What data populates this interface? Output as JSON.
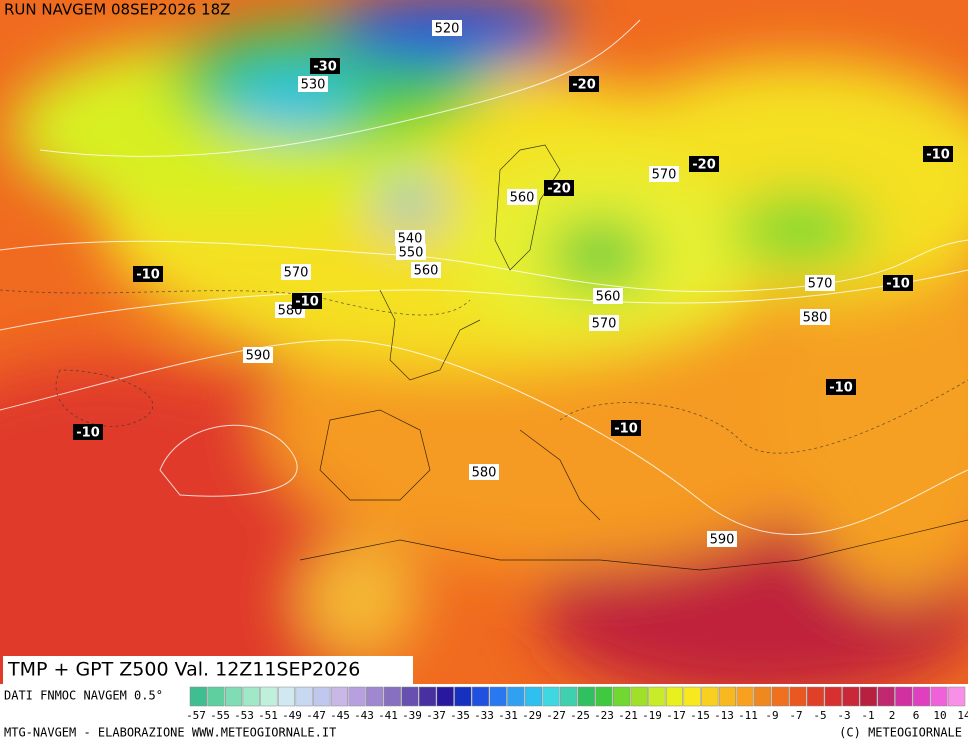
{
  "header": {
    "title": "RUN NAVGEM 08SEP2026 18Z"
  },
  "geopotential_labels": [
    "520",
    "530",
    "560",
    "540",
    "550",
    "560",
    "570",
    "580",
    "590",
    "570",
    "570",
    "580",
    "560",
    "570",
    "580",
    "590"
  ],
  "temperature_labels": [
    "-30",
    "-20",
    "-20",
    "-20",
    "-10",
    "-10",
    "-10",
    "-10",
    "-10",
    "-10",
    "-10"
  ],
  "footer": {
    "validity": "TMP + GPT Z500 Val. 12Z11SEP2026",
    "source": "DATI FNMOC NAVGEM 0.5°",
    "credit": "MTG-NAVGEM - ELABORAZIONE WWW.METEOGIORNALE.IT",
    "copyright": "(C) METEOGIORNALE"
  },
  "colorbar": {
    "labels": [
      "-57",
      "-55",
      "-53",
      "-51",
      "-49",
      "-47",
      "-45",
      "-43",
      "-41",
      "-39",
      "-37",
      "-35",
      "-33",
      "-31",
      "-29",
      "-27",
      "-25",
      "-23",
      "-21",
      "-19",
      "-17",
      "-15",
      "-13",
      "-11",
      "-9",
      "-7",
      "-5",
      "-3",
      "-1",
      "2",
      "6",
      "10",
      "14"
    ],
    "colors": [
      "#3fbf8f",
      "#5fcfa0",
      "#80dcb4",
      "#a0e8c8",
      "#c0f0dc",
      "#d0e8f0",
      "#c8d8f0",
      "#c0c8f0",
      "#c8b8e8",
      "#b8a0e0",
      "#a088d0",
      "#8870c0",
      "#6850b0",
      "#4830a0",
      "#2818a0",
      "#1830c0",
      "#2050e0",
      "#2878f0",
      "#30a0f0",
      "#30c0f0",
      "#40d8e0",
      "#40d0b0",
      "#30c060",
      "#40c840",
      "#70d830",
      "#a0e028",
      "#c8ec28",
      "#e8f020",
      "#f8e820",
      "#f8d020",
      "#f8b820",
      "#f8a020",
      "#f08820",
      "#f07020",
      "#e85820",
      "#e04028",
      "#d83030",
      "#c82838",
      "#b82040",
      "#c02870",
      "#d030a0",
      "#e040c0",
      "#f060d8",
      "#f890e8"
    ]
  }
}
